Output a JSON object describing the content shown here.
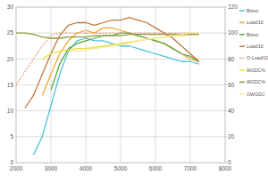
{
  "chart_data": {
    "type": "line",
    "x": [
      2000,
      2250,
      2500,
      2750,
      3000,
      3250,
      3500,
      3750,
      4000,
      4250,
      4500,
      4750,
      5000,
      5250,
      5500,
      5750,
      6000,
      6250,
      6500,
      6750,
      7000,
      7250
    ],
    "xlim": [
      2000,
      8000
    ],
    "xticks": [
      2000,
      3000,
      4000,
      5000,
      6000,
      7000,
      8000
    ],
    "ylim": [
      0,
      30
    ],
    "yticks": [
      0,
      5,
      10,
      15,
      20,
      25,
      30
    ],
    "y2lim": [
      0,
      120
    ],
    "y2ticks": [
      0,
      20,
      40,
      60,
      80,
      100,
      120
    ],
    "grid": true,
    "legend": "right",
    "series": [
      {
        "name": "Boost",
        "color": "#4cc3d6",
        "values": [
          null,
          null,
          1.5,
          5,
          11,
          17,
          21.5,
          23.5,
          24,
          23.5,
          23.5,
          23,
          22.5,
          22.5,
          22,
          21.5,
          21,
          20.5,
          20,
          19.5,
          19.5,
          19
        ]
      },
      {
        "name": "Load/10",
        "color": "#f0a830",
        "values": [
          null,
          null,
          null,
          13,
          17,
          21,
          23.5,
          25,
          25.5,
          25,
          26,
          26,
          25.5,
          25,
          24.5,
          24,
          23.5,
          23,
          22,
          21,
          20,
          19.5
        ]
      },
      {
        "name": "Boost",
        "color": "#5aa83c",
        "values": [
          null,
          null,
          null,
          null,
          14,
          19,
          22,
          23,
          23.5,
          24,
          24.5,
          24.5,
          25,
          25,
          24.5,
          24,
          23.5,
          23,
          22,
          21,
          20.5,
          19.5
        ]
      },
      {
        "name": "Load/10",
        "color": "#c0763c",
        "values": [
          null,
          10.5,
          13,
          17,
          21,
          24.5,
          26.5,
          27,
          27,
          26.5,
          27,
          27.5,
          27.5,
          28,
          27.5,
          27,
          26,
          25,
          24,
          22.5,
          21,
          19.5
        ]
      },
      {
        "name": "O-Load/10",
        "color": "#e8a080",
        "line_style": "dashed",
        "values": [
          15,
          17.5,
          20,
          22.5,
          24.5,
          25,
          25,
          25,
          25,
          25,
          25,
          25,
          25,
          25,
          25,
          25,
          25,
          25,
          25,
          25,
          25,
          25
        ]
      },
      {
        "name": "WGDC%",
        "color": "#f0dc3c",
        "axis": "y2",
        "values": [
          null,
          null,
          null,
          80,
          84,
          86,
          87,
          88,
          88,
          89,
          90,
          91,
          92,
          93,
          94,
          95,
          96,
          97,
          98,
          98,
          99,
          99
        ]
      },
      {
        "name": "WGDC%",
        "color": "#8a9a3a",
        "axis": "y2",
        "values": [
          100,
          100,
          99,
          97,
          96,
          96,
          97,
          97,
          97,
          98,
          98,
          98,
          98,
          99,
          99,
          99,
          99,
          99,
          99,
          99,
          99,
          99
        ]
      },
      {
        "name": "OWGDC",
        "color": "#f6e6a0",
        "axis": "y2",
        "values": [
          null,
          null,
          null,
          null,
          null,
          null,
          86,
          86,
          87,
          88,
          89,
          90,
          91,
          92,
          94,
          95,
          96,
          97,
          98,
          99,
          100,
          100
        ]
      }
    ]
  }
}
